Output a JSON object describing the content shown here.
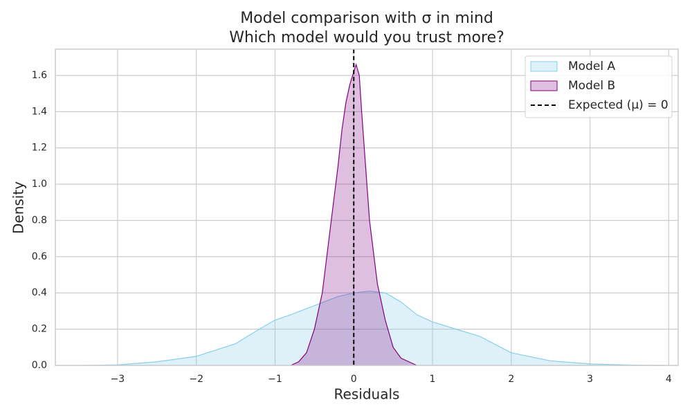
{
  "chart_data": {
    "type": "kde",
    "title": "Model comparison with σ in mind",
    "subtitle": "Which model would you trust more?",
    "x_label": "Residuals",
    "y_label": "Density",
    "xlim": [
      -3.79,
      4.12
    ],
    "ylim": [
      0,
      1.745
    ],
    "xticks": [
      {
        "value": -3,
        "label": "−3"
      },
      {
        "value": -2,
        "label": "−2"
      },
      {
        "value": -1,
        "label": "−1"
      },
      0,
      1,
      2,
      3,
      4
    ],
    "yticks": [
      {
        "value": 0,
        "label": "0.0"
      },
      0.2,
      0.4,
      0.6,
      0.8,
      {
        "value": 1,
        "label": "1.0"
      },
      1.2,
      1.4,
      1.6
    ],
    "grid": true,
    "legend": "upper right",
    "series": [
      {
        "name": "Model A",
        "color": "#87ceeb",
        "x": [
          -3.4,
          -3.0,
          -2.5,
          -2.0,
          -1.5,
          -1.2,
          -1.0,
          -0.8,
          -0.5,
          -0.2,
          0,
          0.2,
          0.4,
          0.6,
          0.8,
          1.0,
          1.3,
          1.6,
          2.0,
          2.5,
          3.0,
          3.5,
          3.9
        ],
        "values": [
          0,
          0.003,
          0.02,
          0.05,
          0.12,
          0.2,
          0.25,
          0.28,
          0.33,
          0.38,
          0.4,
          0.41,
          0.4,
          0.35,
          0.28,
          0.24,
          0.2,
          0.16,
          0.07,
          0.025,
          0.008,
          0.002,
          0
        ]
      },
      {
        "name": "Model B",
        "color": "#800080",
        "x": [
          -0.8,
          -0.7,
          -0.6,
          -0.5,
          -0.4,
          -0.3,
          -0.2,
          -0.15,
          -0.1,
          -0.05,
          0,
          0.03,
          0.07,
          0.1,
          0.15,
          0.2,
          0.3,
          0.4,
          0.5,
          0.6,
          0.7,
          0.8
        ],
        "values": [
          0,
          0.02,
          0.07,
          0.2,
          0.4,
          0.75,
          1.1,
          1.3,
          1.45,
          1.55,
          1.62,
          1.66,
          1.6,
          1.4,
          1.1,
          0.8,
          0.45,
          0.25,
          0.1,
          0.04,
          0.02,
          0
        ]
      }
    ],
    "vline": {
      "name": "Expected (μ) = 0",
      "x": 0,
      "color": "#000000"
    }
  }
}
